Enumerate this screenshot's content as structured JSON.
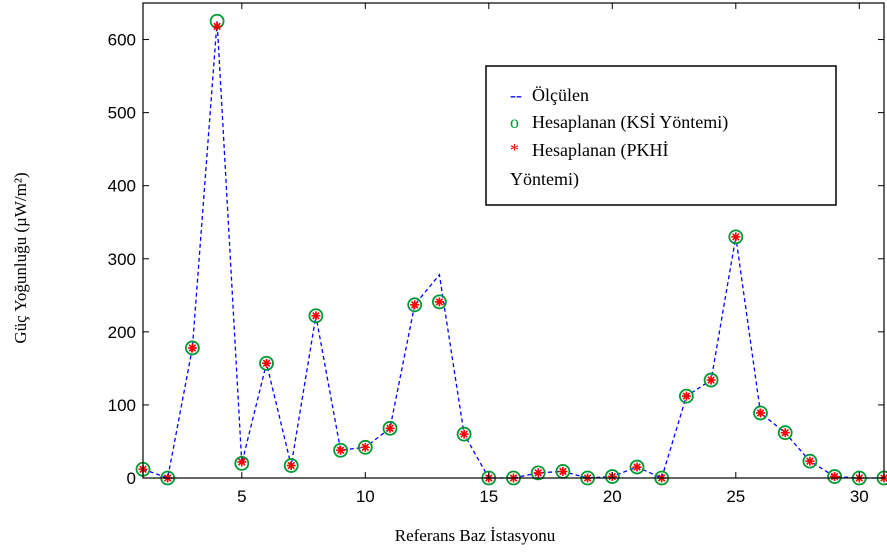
{
  "chart_data": {
    "type": "line",
    "xlabel": "Referans Baz İstasyonu",
    "ylabel": "Güç Yoğunluğu (µW/m²)",
    "xlim": [
      1,
      31
    ],
    "ylim": [
      0,
      650
    ],
    "xticks": [
      5,
      10,
      15,
      20,
      25,
      30
    ],
    "yticks": [
      0,
      100,
      200,
      300,
      400,
      500,
      600
    ],
    "grid": false,
    "legend_position": "upper-right",
    "x": [
      1,
      2,
      3,
      4,
      5,
      6,
      7,
      8,
      9,
      10,
      11,
      12,
      13,
      14,
      15,
      16,
      17,
      18,
      19,
      20,
      21,
      22,
      23,
      24,
      25,
      26,
      27,
      28,
      29,
      30,
      31
    ],
    "series": [
      {
        "name": "Ölçülen",
        "style": "dashed-line",
        "color": "#0000ff",
        "values": [
          12,
          0,
          178,
          625,
          20,
          157,
          17,
          222,
          38,
          42,
          68,
          237,
          278,
          60,
          0,
          0,
          7,
          9,
          0,
          2,
          15,
          0,
          112,
          134,
          330,
          89,
          62,
          23,
          2,
          0,
          0
        ]
      },
      {
        "name": "Hesaplanan (KSİ Yöntemi)",
        "style": "circle-marker",
        "color": "#009933",
        "values": [
          12,
          0,
          178,
          625,
          20,
          157,
          17,
          222,
          38,
          42,
          68,
          237,
          241,
          60,
          0,
          0,
          7,
          9,
          0,
          2,
          15,
          0,
          112,
          134,
          330,
          89,
          62,
          23,
          2,
          0,
          0
        ]
      },
      {
        "name": "Hesaplanan (PKHİ Yöntemi)",
        "style": "star-marker",
        "color": "#ff0000",
        "values": [
          12,
          0,
          178,
          618,
          22,
          157,
          17,
          222,
          38,
          42,
          68,
          237,
          241,
          60,
          0,
          0,
          7,
          9,
          0,
          2,
          15,
          0,
          112,
          134,
          330,
          89,
          62,
          23,
          2,
          0,
          0
        ]
      }
    ],
    "legend": {
      "entries": [
        {
          "marker": "--",
          "label": "Ölçülen"
        },
        {
          "marker": "o",
          "label": "Hesaplanan (KSİ Yöntemi)"
        },
        {
          "marker": "*",
          "label": "Hesaplanan (PKHİ",
          "continuation": "Yöntemi)"
        }
      ]
    }
  }
}
